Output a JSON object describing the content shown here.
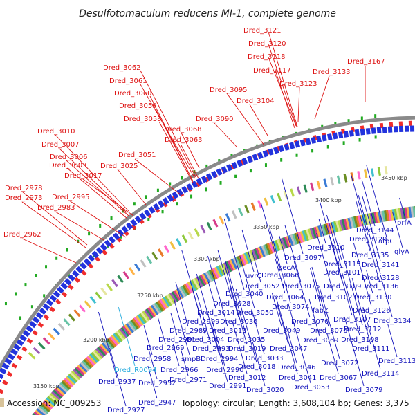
{
  "title": "Desulfotomaculum reducens MI-1, complete genome",
  "footer": {
    "accession": "Accession: NC_009253",
    "summary": "Topology: circular; Length: 3,608,104 bp; Genes: 3,375"
  },
  "colors": {
    "forward_label": "#dd1111",
    "reverse_label": "#1111bb",
    "rna_label": "#22aadd",
    "forward_gene": "#ee2222",
    "reverse_gene": "#2233dd",
    "backbone": "#808080",
    "marker": "#22aa22"
  },
  "scale": {
    "ticks": [
      "3150 kbp",
      "3200 kbp",
      "3250 kbp",
      "3300 kbp",
      "3350 kbp",
      "3400 kbp",
      "3450 kbp"
    ]
  },
  "labels": {
    "top": [
      "Dred_3121",
      "Dred_3120",
      "Dred_3118",
      "Dred_3117",
      "Dred_3123",
      "Dred_3133",
      "Dred_3167",
      "Dred_3062",
      "Dred_3061",
      "Dred_3060",
      "Dred_3059",
      "Dred_3058",
      "Dred_3068",
      "Dred_3063",
      "Dred_3095",
      "Dred_3104",
      "Dred_3090",
      "Dred_3010",
      "Dred_3007",
      "Dred_3006",
      "Dred_3003",
      "Dred_3025",
      "Dred_3051",
      "Dred_3017",
      "Dred_2978",
      "Dred_2973",
      "Dred_2995",
      "Dred_2983",
      "Dred_2962"
    ],
    "bottom": [
      "prfA",
      "Dred_3144",
      "atpC",
      "glyA",
      "Dred_3129",
      "Dred_3110",
      "Dred_3135",
      "Dred_3097",
      "Dred_3115",
      "Dred_3141",
      "secA",
      "Dred_3101",
      "Dred_3128",
      "uvrC",
      "Dred_3066",
      "Dred_3052",
      "Dred_3075",
      "Dred_3109",
      "Dred_3136",
      "Dred_3040",
      "Dred_3064",
      "Dred_3102",
      "Dred_3130",
      "Dred_3028",
      "Dred_3074",
      "fabZ",
      "Dred_3126",
      "Dred_3014",
      "Dred_3050",
      "Dred_3107",
      "Dred_3134",
      "Dred_2999",
      "Dred_3036",
      "Dred_3070",
      "Dred_3112",
      "Dred_2989",
      "Dred_3013",
      "Dred_3049",
      "Dred_3076",
      "Dred_2981",
      "Dred_3004",
      "Dred_3035",
      "Dred_3069",
      "Dred_3108",
      "Dred_2969",
      "Dred_2993",
      "Dred_3019",
      "Dred_3047",
      "Dred_3111",
      "Dred_2958",
      "smpB",
      "Dred_2994",
      "Dred_3033",
      "Dred_3072",
      "Dred_3113",
      "Dred_R0094",
      "Dred_2966",
      "Dred_2990",
      "Dred_3018",
      "Dred_3046",
      "Dred_3114",
      "Dred_2971",
      "Dred_3012",
      "Dred_3041",
      "Dred_3067",
      "Dred_2937",
      "Dred_2952",
      "Dred_2991",
      "Dred_3053",
      "Dred_3020",
      "Dred_3079",
      "Dred_2947",
      "Dred_2927"
    ]
  }
}
